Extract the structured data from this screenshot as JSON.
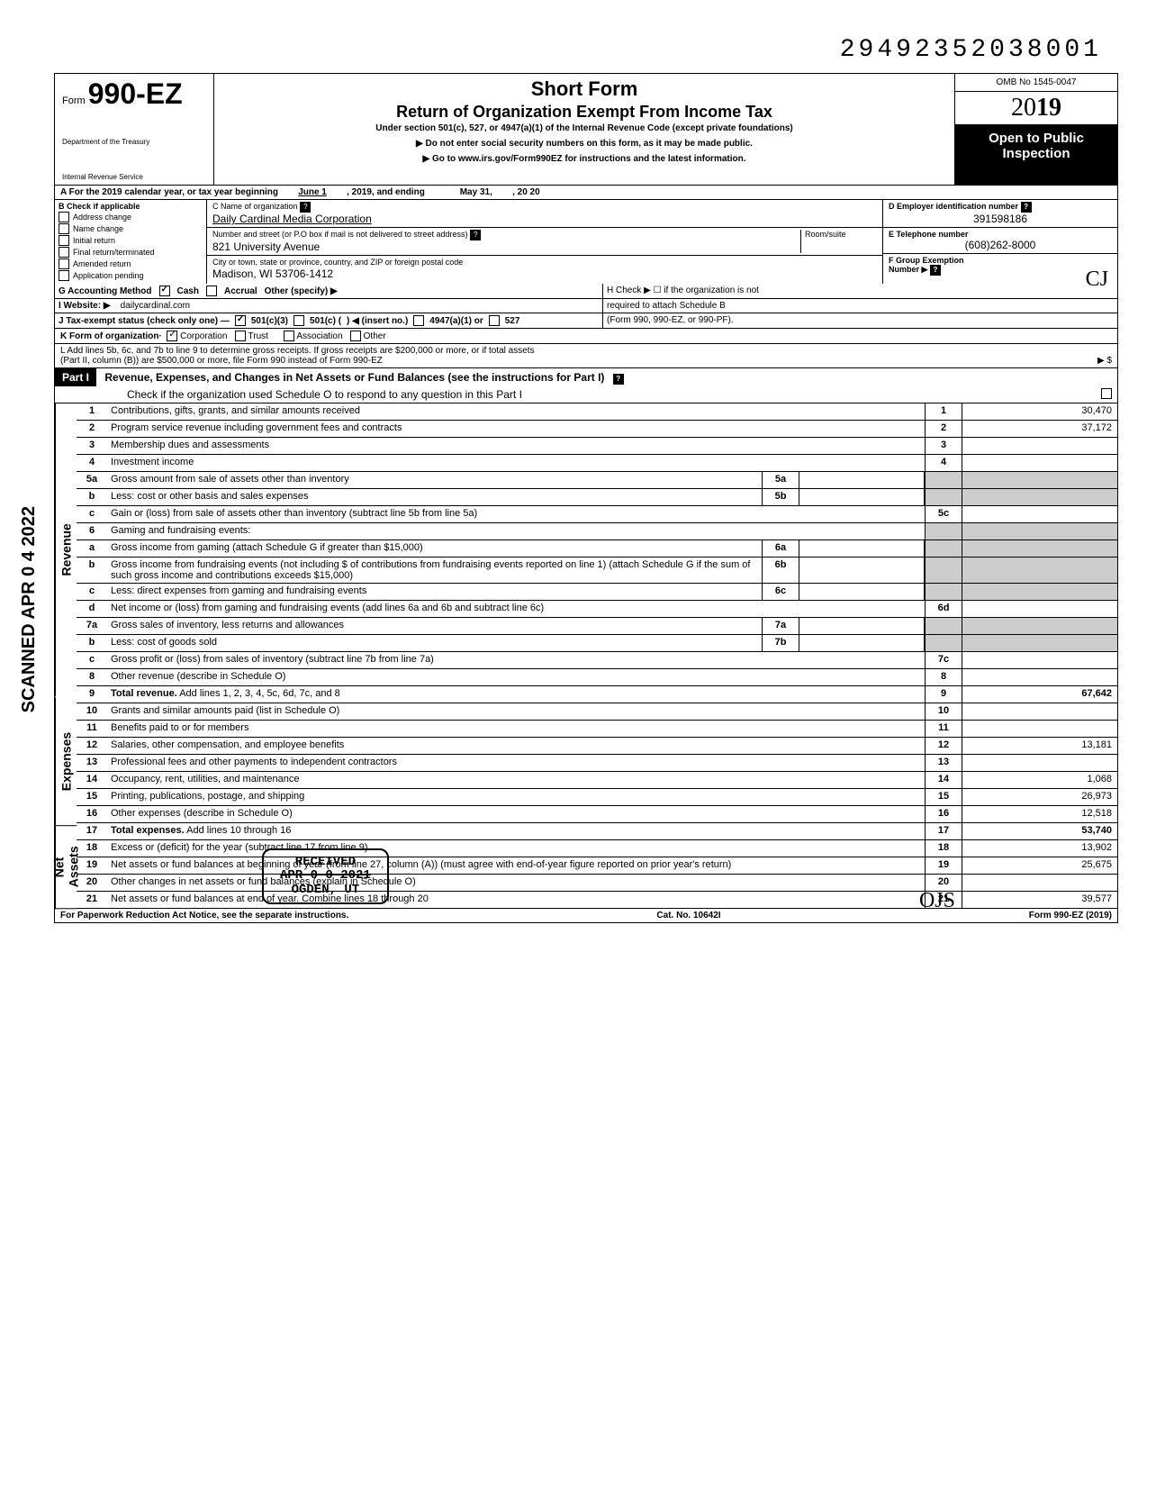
{
  "top_number": "29492352038001",
  "form": {
    "prefix": "Form",
    "number": "990-EZ",
    "dept1": "Department of the Treasury",
    "dept2": "Internal Revenue Service"
  },
  "title": {
    "short": "Short Form",
    "main": "Return of Organization Exempt From Income Tax",
    "sub": "Under section 501(c), 527, or 4947(a)(1) of the Internal Revenue Code (except private foundations)",
    "arrow1": "▶ Do not enter social security numbers on this form, as it may be made public.",
    "arrow2": "▶ Go to www.irs.gov/Form990EZ for instructions and the latest information."
  },
  "right_header": {
    "omb": "OMB No 1545-0047",
    "year_outline": "20",
    "year_bold": "19",
    "open1": "Open to Public",
    "open2": "Inspection"
  },
  "line_a": {
    "prefix": "A For the 2019 calendar year, or tax year beginning",
    "begin": "June 1",
    "mid": ", 2019, and ending",
    "end": "May 31,",
    "suffix": ", 20   20"
  },
  "section_b": {
    "header": "B Check if applicable",
    "items": [
      "Address change",
      "Name change",
      "Initial return",
      "Final return/terminated",
      "Amended return",
      "Application pending"
    ]
  },
  "section_c": {
    "name_label": "C Name of organization",
    "name": "Daily Cardinal Media Corporation",
    "addr_label": "Number and street (or P.O  box if mail is not delivered to street address)",
    "room_label": "Room/suite",
    "addr": "821 University Avenue",
    "city_label": "City or town, state or province, country, and ZIP or foreign postal code",
    "city": "Madison, WI 53706-1412"
  },
  "section_d": {
    "ein_label": "D Employer identification number",
    "ein": "391598186",
    "tel_label": "E Telephone number",
    "tel": "(608)262-8000",
    "grp_label": "F Group Exemption",
    "grp_label2": "Number ▶"
  },
  "line_g": {
    "label": "G Accounting Method",
    "cash": "Cash",
    "accrual": "Accrual",
    "other": "Other (specify) ▶"
  },
  "line_h": {
    "text1": "H Check ▶ ☐ if the organization is not",
    "text2": "required to attach Schedule B",
    "text3": "(Form 990, 990-EZ, or 990-PF)."
  },
  "line_i": {
    "label": "I  Website: ▶",
    "val": "dailycardinal.com"
  },
  "line_j": {
    "label": "J Tax-exempt status (check only one) —",
    "c3": "501(c)(3)",
    "c": "501(c) (",
    "insert": ") ◀ (insert no.)",
    "a47": "4947(a)(1) or",
    "s527": "527"
  },
  "line_k": {
    "label": "K Form of organization·",
    "corp": "Corporation",
    "trust": "Trust",
    "assoc": "Association",
    "other": "Other"
  },
  "line_l": {
    "text1": "L Add lines 5b, 6c, and 7b to line 9 to determine gross receipts. If gross receipts are $200,000 or more, or if total assets",
    "text2": "(Part II, column (B)) are $500,000 or more, file Form 990 instead of Form 990-EZ",
    "arrow": "▶  $"
  },
  "part1": {
    "label": "Part I",
    "title": "Revenue, Expenses, and Changes in Net Assets or Fund Balances (see the instructions for Part I)",
    "check": "Check if the organization used Schedule O to respond to any question in this Part I"
  },
  "vert": {
    "revenue": "Revenue",
    "expenses": "Expenses",
    "netassets": "Net Assets"
  },
  "lines": {
    "l1": {
      "n": "1",
      "t": "Contributions, gifts, grants, and similar amounts received",
      "rn": "1",
      "rv": "30,470"
    },
    "l2": {
      "n": "2",
      "t": "Program service revenue including government fees and contracts",
      "rn": "2",
      "rv": "37,172"
    },
    "l3": {
      "n": "3",
      "t": "Membership dues and assessments",
      "rn": "3",
      "rv": ""
    },
    "l4": {
      "n": "4",
      "t": "Investment income",
      "rn": "4",
      "rv": ""
    },
    "l5a": {
      "n": "5a",
      "t": "Gross amount from sale of assets other than inventory",
      "mn": "5a",
      "mv": ""
    },
    "l5b": {
      "n": "b",
      "t": "Less: cost or other basis and sales expenses",
      "mn": "5b",
      "mv": ""
    },
    "l5c": {
      "n": "c",
      "t": "Gain or (loss) from sale of assets other than inventory (subtract line 5b from line 5a)",
      "rn": "5c",
      "rv": ""
    },
    "l6": {
      "n": "6",
      "t": "Gaming and fundraising events:"
    },
    "l6a": {
      "n": "a",
      "t": "Gross income from gaming (attach Schedule G if greater than $15,000)",
      "mn": "6a",
      "mv": ""
    },
    "l6b": {
      "n": "b",
      "t": "Gross income from fundraising events (not including  $                          of contributions from fundraising events reported on line 1) (attach Schedule G if the sum of such gross income and contributions exceeds $15,000)",
      "mn": "6b",
      "mv": ""
    },
    "l6c": {
      "n": "c",
      "t": "Less: direct expenses from gaming and fundraising events",
      "mn": "6c",
      "mv": ""
    },
    "l6d": {
      "n": "d",
      "t": "Net income or (loss) from gaming and fundraising events (add lines 6a and 6b and subtract line 6c)",
      "rn": "6d",
      "rv": ""
    },
    "l7a": {
      "n": "7a",
      "t": "Gross sales of inventory, less returns and allowances",
      "mn": "7a",
      "mv": ""
    },
    "l7b": {
      "n": "b",
      "t": "Less: cost of goods sold",
      "mn": "7b",
      "mv": ""
    },
    "l7c": {
      "n": "c",
      "t": "Gross profit or (loss) from sales of inventory (subtract line 7b from line 7a)",
      "rn": "7c",
      "rv": ""
    },
    "l8": {
      "n": "8",
      "t": "Other revenue (describe in Schedule O)",
      "rn": "8",
      "rv": ""
    },
    "l9": {
      "n": "9",
      "t": "Total revenue. Add lines 1, 2, 3, 4, 5c, 6d, 7c, and 8",
      "rn": "9",
      "rv": "67,642"
    },
    "l10": {
      "n": "10",
      "t": "Grants and similar amounts paid (list in Schedule O)",
      "rn": "10",
      "rv": ""
    },
    "l11": {
      "n": "11",
      "t": "Benefits paid to or for members",
      "rn": "11",
      "rv": ""
    },
    "l12": {
      "n": "12",
      "t": "Salaries, other compensation, and employee benefits",
      "rn": "12",
      "rv": "13,181"
    },
    "l13": {
      "n": "13",
      "t": "Professional fees and other payments to independent contractors",
      "rn": "13",
      "rv": ""
    },
    "l14": {
      "n": "14",
      "t": "Occupancy, rent, utilities, and maintenance",
      "rn": "14",
      "rv": "1,068"
    },
    "l15": {
      "n": "15",
      "t": "Printing, publications, postage, and shipping",
      "rn": "15",
      "rv": "26,973"
    },
    "l16": {
      "n": "16",
      "t": "Other expenses (describe in Schedule O)",
      "rn": "16",
      "rv": "12,518"
    },
    "l17": {
      "n": "17",
      "t": "Total expenses. Add lines 10 through 16",
      "rn": "17",
      "rv": "53,740"
    },
    "l18": {
      "n": "18",
      "t": "Excess or (deficit) for the year (subtract line 17 from line 9)",
      "rn": "18",
      "rv": "13,902"
    },
    "l19": {
      "n": "19",
      "t": "Net assets or fund balances at beginning of year (from line 27, column (A)) (must agree with end-of-year figure reported on prior year's return)",
      "rn": "19",
      "rv": "25,675"
    },
    "l20": {
      "n": "20",
      "t": "Other changes in net assets or fund balances (explain in Schedule O)",
      "rn": "20",
      "rv": ""
    },
    "l21": {
      "n": "21",
      "t": "Net assets or fund balances at end of year. Combine lines 18 through 20",
      "rn": "21",
      "rv": "39,577"
    }
  },
  "footer": {
    "left": "For Paperwork Reduction Act Notice, see the separate instructions.",
    "mid": "Cat. No. 10642I",
    "right": "Form 990-EZ (2019)"
  },
  "stamps": {
    "scanned": "SCANNED   APR 0 4 2022",
    "received": "RECEIVED\nAPR    2021\nOGDEN, UT",
    "hw1": "2015",
    "hw2": "CJ",
    "hw3": "OJS"
  }
}
